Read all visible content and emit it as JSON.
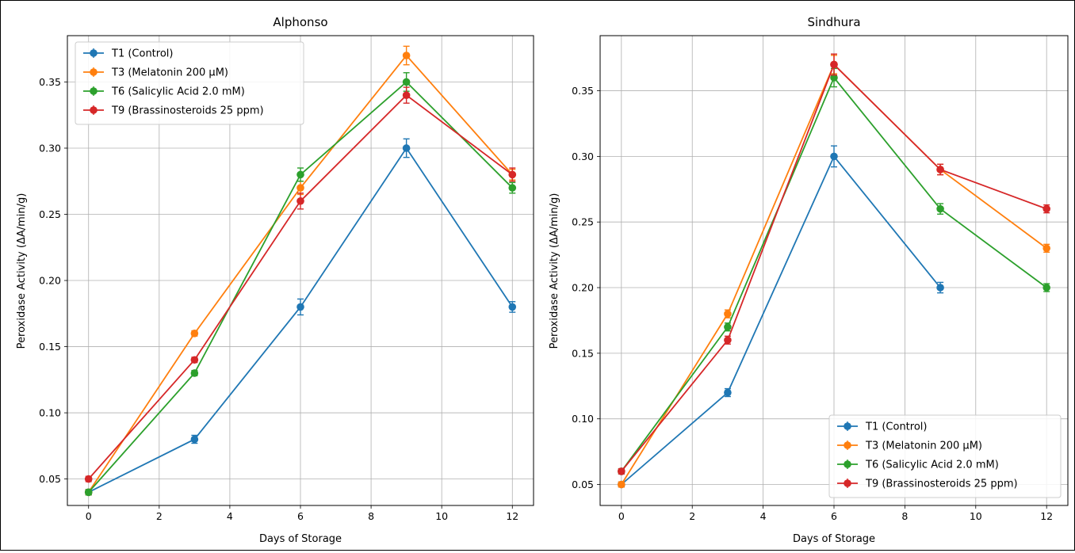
{
  "chart_data": [
    {
      "type": "line",
      "title": "Alphonso",
      "xlabel": "Days of Storage",
      "ylabel": "Peroxidase Activity (ΔA/min/g)",
      "xlim": [
        -0.6,
        12.6
      ],
      "ylim": [
        0.03,
        0.385
      ],
      "xticks": [
        0,
        2,
        4,
        6,
        8,
        10,
        12
      ],
      "yticks": [
        0.05,
        0.1,
        0.15,
        0.2,
        0.25,
        0.3,
        0.35
      ],
      "grid": true,
      "legend_position": "upper-left",
      "series": [
        {
          "name": "T1 (Control)",
          "color": "#1f77b4",
          "x": [
            0,
            3,
            6,
            9,
            12
          ],
          "y": [
            0.04,
            0.08,
            0.18,
            0.3,
            0.18
          ],
          "err": [
            0.002,
            0.003,
            0.006,
            0.007,
            0.004
          ]
        },
        {
          "name": "T3 (Melatonin 200 μM)",
          "color": "#ff7f0e",
          "x": [
            0,
            3,
            6,
            9,
            12
          ],
          "y": [
            0.04,
            0.16,
            0.27,
            0.37,
            0.28
          ],
          "err": [
            0.002,
            0.002,
            0.005,
            0.007,
            0.004
          ]
        },
        {
          "name": "T6 (Salicylic Acid 2.0 mM)",
          "color": "#2ca02c",
          "x": [
            0,
            3,
            6,
            9,
            12
          ],
          "y": [
            0.04,
            0.13,
            0.28,
            0.35,
            0.27
          ],
          "err": [
            0.002,
            0.002,
            0.005,
            0.007,
            0.004
          ]
        },
        {
          "name": "T9 (Brassinosteroids 25 ppm)",
          "color": "#d62728",
          "x": [
            0,
            3,
            6,
            9,
            12
          ],
          "y": [
            0.05,
            0.14,
            0.26,
            0.34,
            0.28
          ],
          "err": [
            0.002,
            0.002,
            0.006,
            0.006,
            0.005
          ]
        }
      ]
    },
    {
      "type": "line",
      "title": "Sindhura",
      "xlabel": "Days of Storage",
      "ylabel": "Peroxidase Activity (ΔA/min/g)",
      "xlim": [
        -0.6,
        12.6
      ],
      "ylim": [
        0.034,
        0.392
      ],
      "xticks": [
        0,
        2,
        4,
        6,
        8,
        10,
        12
      ],
      "yticks": [
        0.05,
        0.1,
        0.15,
        0.2,
        0.25,
        0.3,
        0.35
      ],
      "grid": true,
      "legend_position": "lower-right",
      "series": [
        {
          "name": "T1 (Control)",
          "color": "#1f77b4",
          "x": [
            0,
            3,
            6,
            9
          ],
          "y": [
            0.05,
            0.12,
            0.3,
            0.2
          ],
          "err": [
            0.002,
            0.003,
            0.008,
            0.004
          ]
        },
        {
          "name": "T3 (Melatonin 200 μM)",
          "color": "#ff7f0e",
          "x": [
            0,
            3,
            6,
            9,
            12
          ],
          "y": [
            0.05,
            0.18,
            0.37,
            0.29,
            0.23
          ],
          "err": [
            0.002,
            0.003,
            0.007,
            0.004,
            0.003
          ]
        },
        {
          "name": "T6 (Salicylic Acid 2.0 mM)",
          "color": "#2ca02c",
          "x": [
            0,
            3,
            6,
            9,
            12
          ],
          "y": [
            0.06,
            0.17,
            0.36,
            0.26,
            0.2
          ],
          "err": [
            0.002,
            0.003,
            0.007,
            0.004,
            0.003
          ]
        },
        {
          "name": "T9 (Brassinosteroids 25 ppm)",
          "color": "#d62728",
          "x": [
            0,
            3,
            6,
            9,
            12
          ],
          "y": [
            0.06,
            0.16,
            0.37,
            0.29,
            0.26
          ],
          "err": [
            0.002,
            0.003,
            0.008,
            0.004,
            0.003
          ]
        }
      ]
    }
  ]
}
